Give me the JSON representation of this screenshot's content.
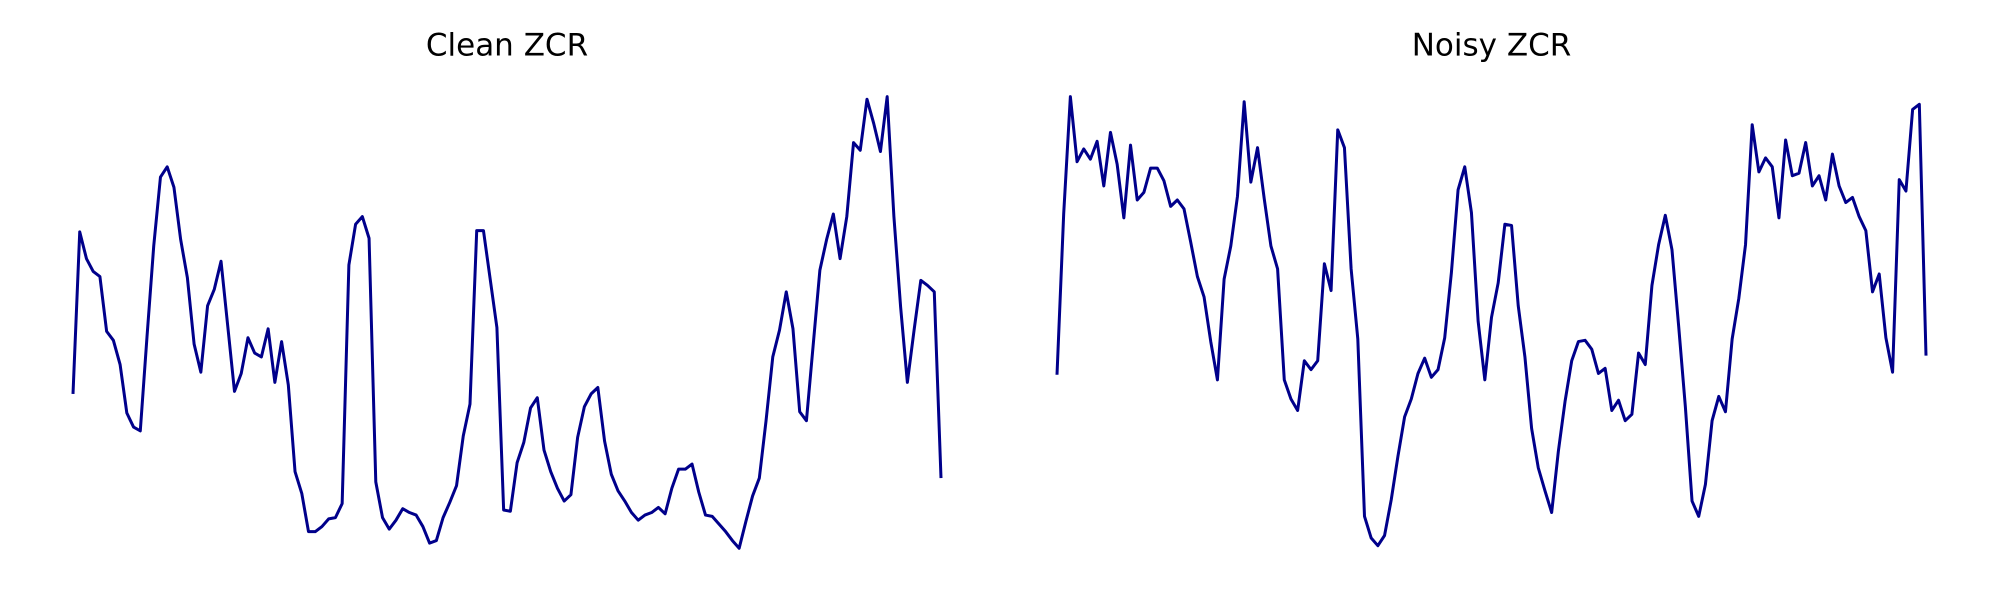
{
  "chart_data": [
    {
      "type": "line",
      "title": "Clean ZCR",
      "color": "#00008b",
      "ylim": [
        0,
        370
      ],
      "values": [
        131,
        258,
        237,
        227,
        223,
        180,
        173,
        154,
        116,
        105,
        102,
        176,
        247,
        301,
        309,
        293,
        252,
        222,
        170,
        148,
        200,
        213,
        235,
        184,
        133,
        147,
        175,
        163,
        160,
        182,
        140,
        172,
        138,
        70,
        53,
        23,
        23,
        27,
        33,
        34,
        45,
        232,
        264,
        270,
        253,
        62,
        34,
        25,
        32,
        41,
        38,
        36,
        27,
        14,
        16,
        34,
        46,
        59,
        98,
        123,
        259,
        259,
        221,
        183,
        40,
        39,
        77,
        93,
        120,
        128,
        87,
        70,
        57,
        47,
        52,
        97,
        121,
        131,
        136,
        94,
        68,
        55,
        47,
        38,
        32,
        36,
        38,
        42,
        37,
        57,
        72,
        72,
        76,
        54,
        36,
        35,
        29,
        23,
        16,
        10,
        31,
        51,
        65,
        110,
        160,
        181,
        211,
        182,
        117,
        110,
        169,
        228,
        252,
        272,
        237,
        270,
        328,
        322,
        362,
        343,
        321,
        364,
        270,
        199,
        140,
        181,
        220,
        216,
        211,
        65
      ]
    },
    {
      "type": "line",
      "title": "Noisy ZCR",
      "color": "#00008b",
      "ylim": [
        0,
        370
      ],
      "values": [
        146,
        272,
        364,
        313,
        323,
        315,
        329,
        294,
        336,
        311,
        269,
        326,
        283,
        289,
        308,
        308,
        298,
        278,
        283,
        276,
        250,
        223,
        207,
        172,
        142,
        221,
        247,
        286,
        360,
        297,
        324,
        284,
        247,
        229,
        142,
        127,
        118,
        157,
        150,
        157,
        233,
        212,
        338,
        324,
        229,
        174,
        35,
        18,
        12,
        20,
        48,
        82,
        113,
        127,
        147,
        159,
        144,
        150,
        175,
        226,
        291,
        309,
        273,
        188,
        142,
        191,
        218,
        264,
        263,
        200,
        160,
        104,
        73,
        55,
        38,
        86,
        125,
        157,
        172,
        173,
        166,
        147,
        151,
        118,
        126,
        110,
        115,
        163,
        154,
        216,
        248,
        271,
        244,
        184,
        121,
        47,
        35,
        60,
        110,
        129,
        117,
        174,
        206,
        248,
        342,
        305,
        316,
        309,
        269,
        330,
        302,
        304,
        328,
        294,
        302,
        283,
        319,
        294,
        281,
        285,
        270,
        259,
        211,
        225,
        175,
        148,
        299,
        290,
        354,
        358,
        161
      ]
    }
  ]
}
